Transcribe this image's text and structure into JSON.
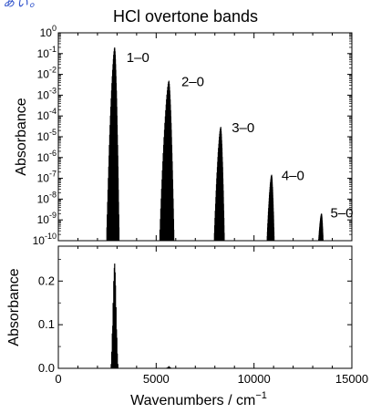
{
  "header": {
    "fragment": "ぁぃ。"
  },
  "chart_data": [
    {
      "type": "line",
      "title": "HCl overtone bands",
      "ylabel": "Absorbance",
      "xlabel": "",
      "yscale": "log",
      "xlim": [
        0,
        15000
      ],
      "ylim": [
        1e-10,
        1
      ],
      "grid": false,
      "y_ticks": [
        1,
        0.1,
        0.01,
        0.001,
        0.0001,
        1e-05,
        1e-06,
        1e-07,
        1e-08,
        1e-09,
        1e-10
      ],
      "y_tick_labels": [
        {
          "base": "10",
          "exp": "0"
        },
        {
          "base": "10",
          "exp": "-1"
        },
        {
          "base": "10",
          "exp": "-2"
        },
        {
          "base": "10",
          "exp": "-3"
        },
        {
          "base": "10",
          "exp": "-4"
        },
        {
          "base": "10",
          "exp": "-5"
        },
        {
          "base": "10",
          "exp": "-6"
        },
        {
          "base": "10",
          "exp": "-7"
        },
        {
          "base": "10",
          "exp": "-8"
        },
        {
          "base": "10",
          "exp": "-9"
        },
        {
          "base": "10",
          "exp": "-10"
        }
      ],
      "bands": [
        {
          "label": "1–0",
          "center": 2880,
          "halfwidth": 420,
          "peak": 0.2
        },
        {
          "label": "2–0",
          "center": 5650,
          "halfwidth": 480,
          "peak": 0.005
        },
        {
          "label": "3–0",
          "center": 8300,
          "halfwidth": 340,
          "peak": 3e-05
        },
        {
          "label": "4–0",
          "center": 10900,
          "halfwidth": 240,
          "peak": 1.5e-07
        },
        {
          "label": "5–0",
          "center": 13450,
          "halfwidth": 150,
          "peak": 2e-09
        }
      ]
    },
    {
      "type": "line",
      "ylabel": "Absorbance",
      "xlabel": "Wavenumbers / cm",
      "xlabel_superscript": "−1",
      "xlim": [
        0,
        15000
      ],
      "ylim": [
        0,
        0.28
      ],
      "grid": false,
      "x_ticks": [
        0,
        5000,
        10000,
        15000
      ],
      "x_tick_labels": [
        "0",
        "5000",
        "10000",
        "15000"
      ],
      "y_ticks": [
        0,
        0.1,
        0.2
      ],
      "y_tick_labels": [
        "0.0",
        "0.1",
        "0.2"
      ],
      "series": [
        {
          "x": [
            2700,
            2760,
            2800,
            2830,
            2860,
            2880,
            2900,
            2920,
            2950,
            2990,
            3040
          ],
          "y": [
            0.01,
            0.08,
            0.15,
            0.2,
            0.23,
            0.24,
            0.22,
            0.19,
            0.14,
            0.07,
            0.01
          ]
        },
        {
          "x": [
            5500,
            5600,
            5650,
            5700,
            5800
          ],
          "y": [
            0.0005,
            0.003,
            0.005,
            0.003,
            0.0005
          ]
        }
      ]
    }
  ]
}
